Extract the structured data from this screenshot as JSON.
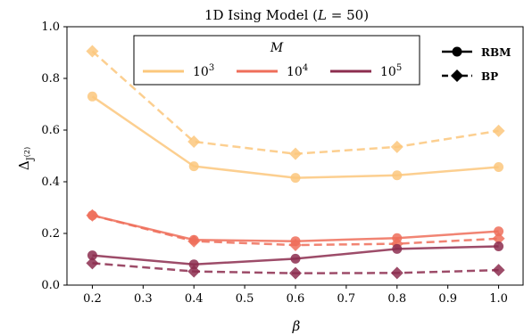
{
  "chart_data": {
    "type": "line",
    "title": "1D Ising Model (L = 50)",
    "xlabel": "β",
    "ylabel": "Δ_{J^(2)}",
    "xlim": [
      0.15,
      1.05
    ],
    "ylim": [
      0.0,
      1.0
    ],
    "xticks": [
      "0.2",
      "0.3",
      "0.4",
      "0.5",
      "0.6",
      "0.7",
      "0.8",
      "0.9",
      "1.0"
    ],
    "yticks": [
      "0.0",
      "0.2",
      "0.4",
      "0.6",
      "0.8",
      "1.0"
    ],
    "x": [
      0.2,
      0.4,
      0.6,
      0.8,
      1.0
    ],
    "grid": false,
    "series": [
      {
        "M": "10^3",
        "method": "RBM",
        "color": "#fbc77c",
        "values": [
          0.73,
          0.46,
          0.415,
          0.425,
          0.457
        ]
      },
      {
        "M": "10^3",
        "method": "BP",
        "color": "#fbc77c",
        "values": [
          0.905,
          0.555,
          0.508,
          0.535,
          0.597
        ]
      },
      {
        "M": "10^4",
        "method": "RBM",
        "color": "#ef6e5a",
        "values": [
          0.27,
          0.175,
          0.17,
          0.182,
          0.208
        ]
      },
      {
        "M": "10^4",
        "method": "BP",
        "color": "#ef6e5a",
        "values": [
          0.27,
          0.17,
          0.155,
          0.16,
          0.18
        ]
      },
      {
        "M": "10^5",
        "method": "RBM",
        "color": "#8c2d4f",
        "values": [
          0.115,
          0.08,
          0.102,
          0.14,
          0.15
        ]
      },
      {
        "M": "10^5",
        "method": "BP",
        "color": "#8c2d4f",
        "values": [
          0.085,
          0.053,
          0.046,
          0.047,
          0.058
        ]
      }
    ],
    "legend_m": {
      "title": "M",
      "entries": [
        {
          "base": "10",
          "exp": "3",
          "color": "#fbc77c"
        },
        {
          "base": "10",
          "exp": "4",
          "color": "#ef6e5a"
        },
        {
          "base": "10",
          "exp": "5",
          "color": "#8c2d4f"
        }
      ],
      "placement": "top-center"
    },
    "legend_method": {
      "entries": [
        {
          "label": "RBM",
          "marker": "circle",
          "dash": false
        },
        {
          "label": "BP",
          "marker": "diamond",
          "dash": true
        }
      ],
      "placement": "top-right"
    }
  }
}
